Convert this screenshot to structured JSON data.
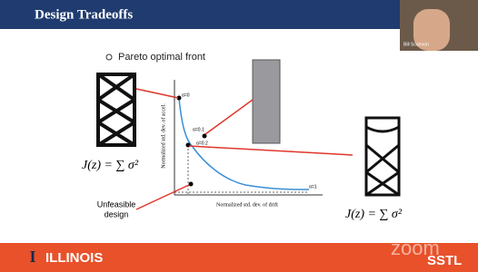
{
  "header": {
    "title": "Design Tradeoffs"
  },
  "bullet": "Pareto optimal front",
  "webcam": {
    "name": "Bill Scannon"
  },
  "plot": {
    "x_label": "Normalized std. dev. of drift",
    "y_label": "Normalized std. dev. of accel.",
    "annotations": [
      "α=0",
      "α=0.1",
      "α=0.2",
      "α=1"
    ]
  },
  "equations": [
    "J(z) = ∑ σ²",
    "J(z) = ∑ σ²"
  ],
  "unfeasible": [
    "Unfeasible",
    "design"
  ],
  "footer": {
    "logo": "I",
    "name": "ILLINOIS",
    "zoom": "zoom",
    "lab": "SSTL"
  }
}
